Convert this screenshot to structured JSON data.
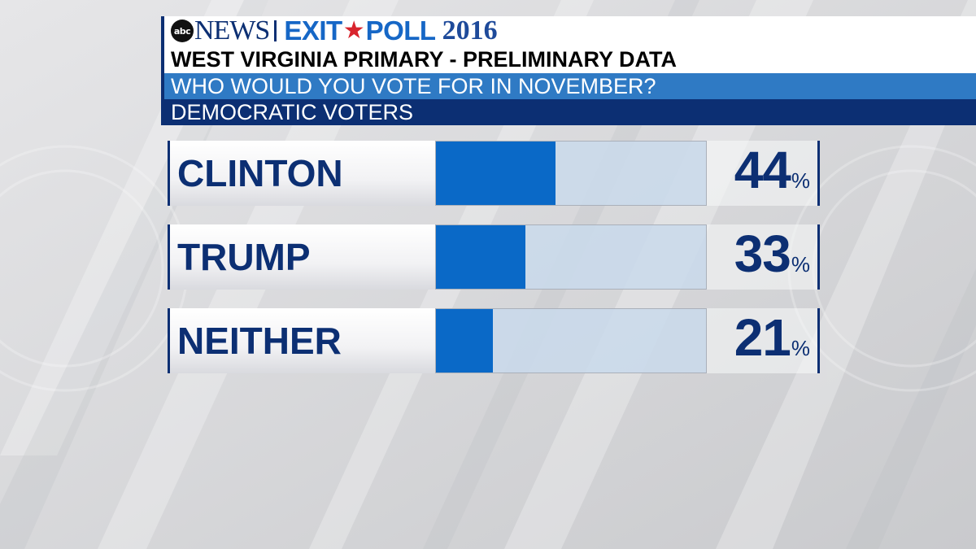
{
  "header": {
    "logo_small": "abc",
    "logo_news": "NEWS",
    "exit_word": "EXIT",
    "poll_word": "POLL",
    "year": "2016",
    "title": "WEST VIRGINIA PRIMARY - PRELIMINARY DATA",
    "question": "WHO WOULD YOU VOTE FOR IN NOVEMBER?",
    "group": "DEMOCRATIC VOTERS"
  },
  "icons": {
    "logo": "abc-logo-icon",
    "star": "star-icon"
  },
  "colors": {
    "navy": "#0c2f73",
    "bar_fill": "#0a69c7",
    "track": "#cadaea",
    "question_band": "#2f7ac4",
    "star": "#d8242d"
  },
  "chart_data": {
    "type": "bar",
    "orientation": "horizontal",
    "categories": [
      "CLINTON",
      "TRUMP",
      "NEITHER"
    ],
    "values": [
      44,
      33,
      21
    ],
    "value_suffix": "%",
    "xlim": [
      0,
      100
    ],
    "title": "WHO WOULD YOU VOTE FOR IN NOVEMBER?",
    "grid": false,
    "legend": "none"
  }
}
